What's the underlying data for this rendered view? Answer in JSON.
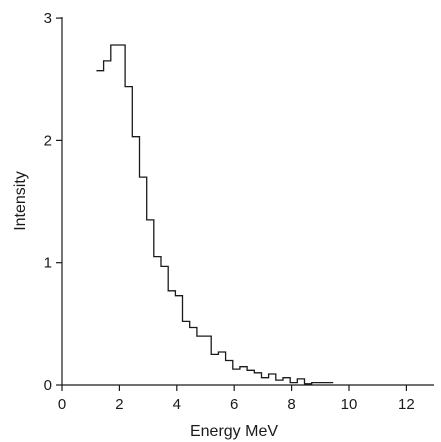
{
  "chart_data": {
    "type": "line",
    "style": "step-histogram",
    "title": "",
    "xlabel": "Energy MeV",
    "ylabel": "Intensity",
    "xlim": [
      0,
      13
    ],
    "ylim": [
      0,
      3
    ],
    "x_ticks": [
      0,
      2,
      4,
      6,
      8,
      10,
      12
    ],
    "y_ticks": [
      0,
      1,
      2,
      3
    ],
    "grid": false,
    "bin_width": 0.25,
    "series": [
      {
        "bins_start": [
          1.2,
          1.45,
          1.7,
          1.95,
          2.2,
          2.45,
          2.7,
          2.95,
          3.2,
          3.45,
          3.7,
          3.95,
          4.2,
          4.45,
          4.7,
          4.95,
          5.2,
          5.45,
          5.7,
          5.95,
          6.2,
          6.45,
          6.7,
          6.95,
          7.2,
          7.45,
          7.7,
          7.95,
          8.2,
          8.45,
          8.7,
          8.95,
          9.2
        ],
        "values": [
          2.57,
          2.65,
          2.78,
          2.78,
          2.44,
          2.03,
          1.7,
          1.35,
          1.05,
          0.97,
          0.77,
          0.73,
          0.52,
          0.47,
          0.4,
          0.4,
          0.25,
          0.27,
          0.2,
          0.13,
          0.15,
          0.12,
          0.1,
          0.06,
          0.09,
          0.04,
          0.06,
          0.02,
          0.05,
          0.01,
          0.02,
          0.02,
          0.02
        ]
      }
    ]
  }
}
